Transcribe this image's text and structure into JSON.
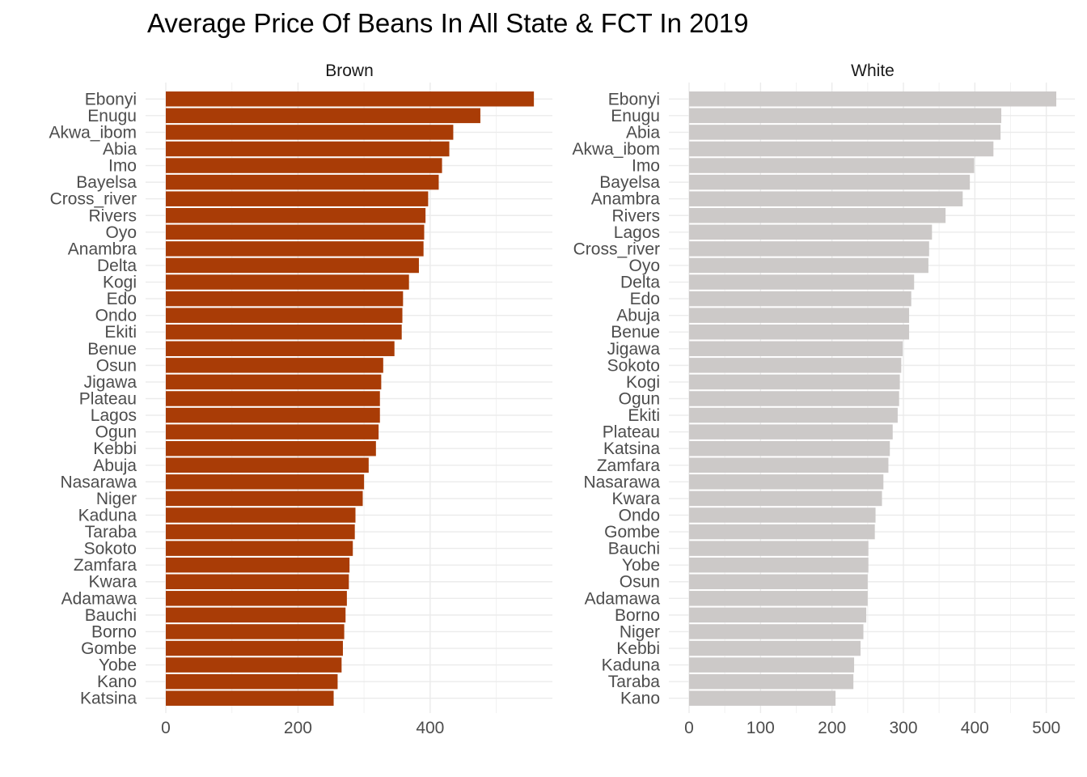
{
  "title": "Average Price Of Beans In All State & FCT In 2019",
  "chart_data": [
    {
      "type": "bar",
      "orientation": "horizontal",
      "facet": "Brown",
      "color": "#A93C06",
      "xlim": [
        0,
        585
      ],
      "xticks": [
        0,
        200,
        400
      ],
      "grid": true,
      "categories": [
        "Ebonyi",
        "Enugu",
        "Akwa_ibom",
        "Abia",
        "Imo",
        "Bayelsa",
        "Cross_river",
        "Rivers",
        "Oyo",
        "Anambra",
        "Delta",
        "Kogi",
        "Edo",
        "Ondo",
        "Ekiti",
        "Benue",
        "Osun",
        "Jigawa",
        "Plateau",
        "Lagos",
        "Ogun",
        "Kebbi",
        "Abuja",
        "Nasarawa",
        "Niger",
        "Kaduna",
        "Taraba",
        "Sokoto",
        "Zamfara",
        "Kwara",
        "Adamawa",
        "Bauchi",
        "Borno",
        "Gombe",
        "Yobe",
        "Kano",
        "Katsina"
      ],
      "values": [
        557,
        476,
        435,
        429,
        418,
        413,
        397,
        393,
        391,
        390,
        383,
        368,
        359,
        358,
        357,
        346,
        329,
        326,
        324,
        324,
        322,
        318,
        307,
        300,
        298,
        287,
        286,
        283,
        278,
        277,
        274,
        272,
        270,
        268,
        266,
        260,
        254
      ]
    },
    {
      "type": "bar",
      "orientation": "horizontal",
      "facet": "White",
      "color": "#CCC9C8",
      "xlim": [
        0,
        540
      ],
      "xticks": [
        0,
        100,
        200,
        300,
        400,
        500
      ],
      "grid": true,
      "categories": [
        "Ebonyi",
        "Enugu",
        "Abia",
        "Akwa_ibom",
        "Imo",
        "Bayelsa",
        "Anambra",
        "Rivers",
        "Lagos",
        "Cross_river",
        "Oyo",
        "Delta",
        "Edo",
        "Abuja",
        "Benue",
        "Jigawa",
        "Sokoto",
        "Kogi",
        "Ogun",
        "Ekiti",
        "Plateau",
        "Katsina",
        "Zamfara",
        "Nasarawa",
        "Kwara",
        "Ondo",
        "Gombe",
        "Bauchi",
        "Yobe",
        "Osun",
        "Adamawa",
        "Borno",
        "Niger",
        "Kebbi",
        "Kaduna",
        "Taraba",
        "Kano"
      ],
      "values": [
        514,
        437,
        436,
        426,
        399,
        393,
        383,
        359,
        340,
        336,
        335,
        315,
        311,
        308,
        308,
        299,
        297,
        295,
        294,
        292,
        285,
        281,
        279,
        272,
        270,
        261,
        260,
        251,
        251,
        250,
        250,
        248,
        244,
        240,
        231,
        230,
        205
      ]
    }
  ]
}
